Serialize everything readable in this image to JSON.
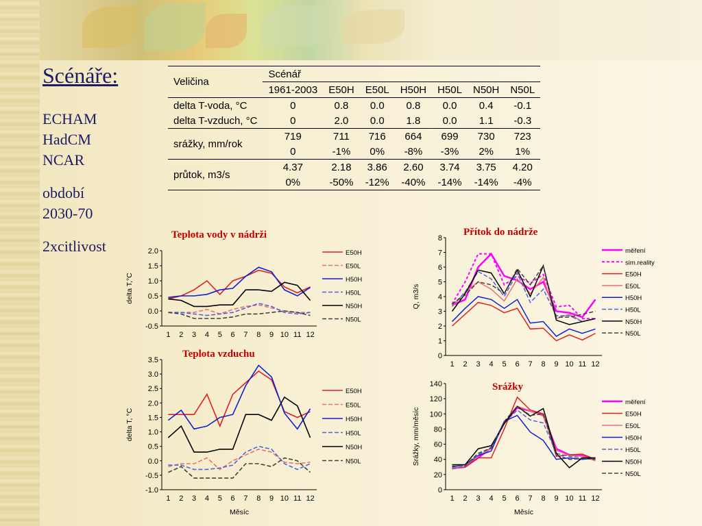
{
  "slide": {
    "title": "Scénáře:",
    "models": [
      "ECHAM",
      "HadCM",
      "NCAR"
    ],
    "period_label": "období",
    "period_value": "2030-70",
    "sensitivity": "2xcitlivost"
  },
  "table": {
    "header_quantity": "Veličina",
    "header_scenario": "Scénář",
    "columns": [
      "1961-2003",
      "E50H",
      "E50L",
      "H50H",
      "H50L",
      "N50H",
      "N50L"
    ],
    "groups": [
      {
        "label": "delta T-voda, °C",
        "rows": [
          [
            "0",
            "0.8",
            "0.0",
            "0.8",
            "0.0",
            "0.4",
            "-0.1"
          ]
        ]
      },
      {
        "label": "delta T-vzduch, °C",
        "rows": [
          [
            "0",
            "2.0",
            "0.0",
            "1.8",
            "0.0",
            "1.1",
            "-0.3"
          ]
        ]
      },
      {
        "label": "srážky, mm/rok",
        "rows": [
          [
            "719",
            "711",
            "716",
            "664",
            "699",
            "730",
            "723"
          ],
          [
            "0",
            "-1%",
            "0%",
            "-8%",
            "-3%",
            "2%",
            "1%"
          ]
        ]
      },
      {
        "label": "průtok, m3/s",
        "rows": [
          [
            "4.37",
            "2.18",
            "3.86",
            "2.60",
            "3.74",
            "3.75",
            "4.20"
          ],
          [
            "0%",
            "-50%",
            "-12%",
            "-40%",
            "-14%",
            "-14%",
            "-4%"
          ]
        ]
      }
    ]
  },
  "chart_data": [
    {
      "id": "water",
      "type": "line",
      "title": "Teplota vody v nádrži",
      "xlabel": "",
      "ylabel": "delta T,°C",
      "ylim": [
        -0.5,
        2.0
      ],
      "yticks": [
        "2.0",
        "1.5",
        "1.0",
        "0.5",
        "0.0",
        "-0.5"
      ],
      "x": [
        1,
        2,
        3,
        4,
        5,
        6,
        7,
        8,
        9,
        10,
        11,
        12
      ],
      "series": [
        {
          "name": "E50H",
          "color": "#e02020",
          "dash": "",
          "values": [
            0.4,
            0.5,
            0.7,
            1.0,
            0.55,
            1.0,
            1.15,
            1.35,
            1.25,
            0.8,
            0.6,
            0.8
          ]
        },
        {
          "name": "E50L",
          "color": "#e87070",
          "dash": "6,3",
          "values": [
            -0.05,
            -0.05,
            -0.05,
            0.05,
            -0.1,
            0.05,
            0.15,
            0.2,
            0.1,
            0.0,
            -0.05,
            -0.05
          ]
        },
        {
          "name": "H50H",
          "color": "#1020d0",
          "dash": "",
          "values": [
            0.45,
            0.5,
            0.5,
            0.55,
            0.7,
            0.75,
            1.15,
            1.45,
            1.3,
            0.7,
            0.5,
            0.78
          ]
        },
        {
          "name": "H50L",
          "color": "#5060e0",
          "dash": "6,3",
          "values": [
            -0.05,
            -0.05,
            -0.1,
            -0.15,
            -0.1,
            -0.05,
            0.1,
            0.25,
            0.15,
            -0.05,
            -0.1,
            -0.05
          ]
        },
        {
          "name": "N50H",
          "color": "#000000",
          "dash": "",
          "values": [
            0.4,
            0.35,
            0.15,
            0.15,
            0.2,
            0.2,
            0.7,
            0.7,
            0.65,
            0.95,
            0.85,
            0.35
          ]
        },
        {
          "name": "N50L",
          "color": "#404040",
          "dash": "6,3",
          "values": [
            -0.05,
            -0.1,
            -0.25,
            -0.25,
            -0.25,
            -0.2,
            -0.1,
            -0.1,
            -0.05,
            0.0,
            -0.05,
            -0.15
          ]
        }
      ]
    },
    {
      "id": "air",
      "type": "line",
      "title": "Teplota vzduchu",
      "xlabel": "Měsíc",
      "ylabel": "delta T, °C",
      "ylim": [
        -1.0,
        3.5
      ],
      "yticks": [
        "3.5",
        "3.0",
        "2.5",
        "2.0",
        "1.5",
        "1.0",
        "0.5",
        "0.0",
        "-0.5",
        "-1.0"
      ],
      "x": [
        1,
        2,
        3,
        4,
        5,
        6,
        7,
        8,
        9,
        10,
        11,
        12
      ],
      "series": [
        {
          "name": "E50H",
          "color": "#e02020",
          "dash": "",
          "values": [
            1.6,
            1.6,
            1.6,
            2.3,
            1.2,
            2.3,
            2.7,
            3.1,
            2.8,
            1.7,
            1.5,
            1.7
          ]
        },
        {
          "name": "E50L",
          "color": "#e87070",
          "dash": "6,3",
          "values": [
            -0.2,
            -0.1,
            -0.1,
            0.1,
            -0.3,
            0.0,
            0.2,
            0.4,
            0.3,
            -0.05,
            -0.1,
            -0.05
          ]
        },
        {
          "name": "H50H",
          "color": "#1020d0",
          "dash": "",
          "values": [
            1.4,
            1.75,
            1.1,
            1.2,
            1.5,
            1.6,
            2.6,
            3.3,
            2.9,
            1.65,
            1.1,
            1.8
          ]
        },
        {
          "name": "H50L",
          "color": "#5060e0",
          "dash": "6,3",
          "values": [
            -0.15,
            -0.15,
            -0.3,
            -0.3,
            -0.25,
            -0.15,
            0.3,
            0.5,
            0.4,
            -0.1,
            -0.3,
            -0.1
          ]
        },
        {
          "name": "N50H",
          "color": "#000000",
          "dash": "",
          "values": [
            0.8,
            1.2,
            0.3,
            0.3,
            0.4,
            0.4,
            1.6,
            1.6,
            1.4,
            2.2,
            1.9,
            0.8
          ]
        },
        {
          "name": "N50L",
          "color": "#404040",
          "dash": "6,3",
          "values": [
            -0.4,
            -0.2,
            -0.6,
            -0.6,
            -0.6,
            -0.6,
            -0.1,
            -0.1,
            -0.2,
            0.1,
            0.0,
            -0.4
          ]
        }
      ]
    },
    {
      "id": "inflow",
      "type": "line",
      "title": "Přítok do nádrže",
      "xlabel": "",
      "ylabel": "Q, m3/s",
      "ylim": [
        0,
        8
      ],
      "yticks": [
        "8",
        "7",
        "6",
        "5",
        "4",
        "3",
        "2",
        "1",
        "0"
      ],
      "x": [
        1,
        2,
        3,
        4,
        5,
        6,
        7,
        8,
        9,
        10,
        11,
        12
      ],
      "series": [
        {
          "name": "měření",
          "color": "#ff00ff",
          "dash": "",
          "width": 2.5,
          "values": [
            3.4,
            3.8,
            6.0,
            6.9,
            5.4,
            5.1,
            4.5,
            5.0,
            3.0,
            2.9,
            2.6,
            3.8
          ]
        },
        {
          "name": "sim.reality",
          "color": "#ff00ff",
          "dash": "4,3",
          "width": 2,
          "values": [
            3.5,
            5.0,
            6.9,
            6.9,
            4.8,
            5.4,
            4.9,
            5.5,
            3.3,
            3.4,
            2.5,
            2.5
          ]
        },
        {
          "name": "E50H",
          "color": "#e02020",
          "dash": "",
          "width": 1.5,
          "values": [
            2.0,
            2.8,
            3.6,
            3.4,
            2.9,
            3.2,
            1.8,
            1.85,
            1.0,
            1.4,
            1.05,
            1.5
          ]
        },
        {
          "name": "E50L",
          "color": "#e87070",
          "dash": "",
          "width": 1.5,
          "values": [
            3.3,
            4.3,
            5.0,
            4.5,
            3.7,
            5.2,
            4.2,
            5.3,
            2.5,
            2.8,
            2.3,
            2.5
          ]
        },
        {
          "name": "H50H",
          "color": "#1020d0",
          "dash": "",
          "width": 1.5,
          "values": [
            2.3,
            3.2,
            4.0,
            3.8,
            3.2,
            3.8,
            2.2,
            2.3,
            1.3,
            1.8,
            1.5,
            1.8
          ]
        },
        {
          "name": "H50L",
          "color": "#5060e0",
          "dash": "6,3",
          "width": 1.5,
          "values": [
            3.4,
            4.3,
            5.7,
            5.2,
            4.0,
            5.6,
            3.6,
            4.5,
            2.7,
            2.7,
            2.3,
            2.5
          ]
        },
        {
          "name": "N50H",
          "color": "#000000",
          "dash": "",
          "width": 1.5,
          "values": [
            3.0,
            4.2,
            5.8,
            5.6,
            4.2,
            5.8,
            4.0,
            6.1,
            2.4,
            2.1,
            2.3,
            2.5
          ]
        },
        {
          "name": "N50L",
          "color": "#404040",
          "dash": "6,3",
          "width": 1.5,
          "values": [
            3.5,
            4.1,
            5.0,
            4.8,
            4.2,
            5.9,
            4.8,
            6.1,
            2.6,
            2.6,
            2.8,
            3.0
          ]
        }
      ]
    },
    {
      "id": "precip",
      "type": "line",
      "title": "Srážky",
      "xlabel": "Měsíc",
      "ylabel": "Srážky, mm/měsíc",
      "ylim": [
        0,
        140
      ],
      "yticks": [
        "140",
        "120",
        "100",
        "80",
        "60",
        "40",
        "20",
        "0"
      ],
      "x": [
        1,
        2,
        3,
        4,
        5,
        6,
        7,
        8,
        9,
        10,
        11,
        12
      ],
      "series": [
        {
          "name": "měření",
          "color": "#ff00ff",
          "dash": "",
          "width": 2.5,
          "values": [
            28,
            30,
            42,
            55,
            88,
            108,
            104,
            98,
            54,
            46,
            45,
            40
          ]
        },
        {
          "name": "E50H",
          "color": "#e02020",
          "dash": "",
          "width": 1.5,
          "values": [
            28,
            30,
            42,
            42,
            80,
            122,
            105,
            100,
            44,
            46,
            47,
            40
          ]
        },
        {
          "name": "E50L",
          "color": "#e87070",
          "dash": "",
          "width": 1.5,
          "values": [
            27,
            31,
            45,
            54,
            88,
            110,
            104,
            97,
            52,
            45,
            44,
            38
          ]
        },
        {
          "name": "H50H",
          "color": "#1020d0",
          "dash": "",
          "width": 1.5,
          "values": [
            30,
            33,
            45,
            51,
            90,
            98,
            76,
            65,
            40,
            42,
            40,
            42
          ]
        },
        {
          "name": "H50L",
          "color": "#5060e0",
          "dash": "6,3",
          "width": 1.5,
          "values": [
            28,
            31,
            46,
            56,
            88,
            105,
            92,
            88,
            48,
            44,
            42,
            42
          ]
        },
        {
          "name": "N50H",
          "color": "#000000",
          "dash": "",
          "width": 1.5,
          "values": [
            33,
            33,
            54,
            58,
            87,
            110,
            97,
            107,
            48,
            29,
            42,
            42
          ]
        },
        {
          "name": "N50L",
          "color": "#404040",
          "dash": "6,3",
          "width": 1.5,
          "values": [
            31,
            32,
            48,
            55,
            90,
            110,
            98,
            100,
            46,
            40,
            41,
            40
          ]
        }
      ]
    }
  ]
}
